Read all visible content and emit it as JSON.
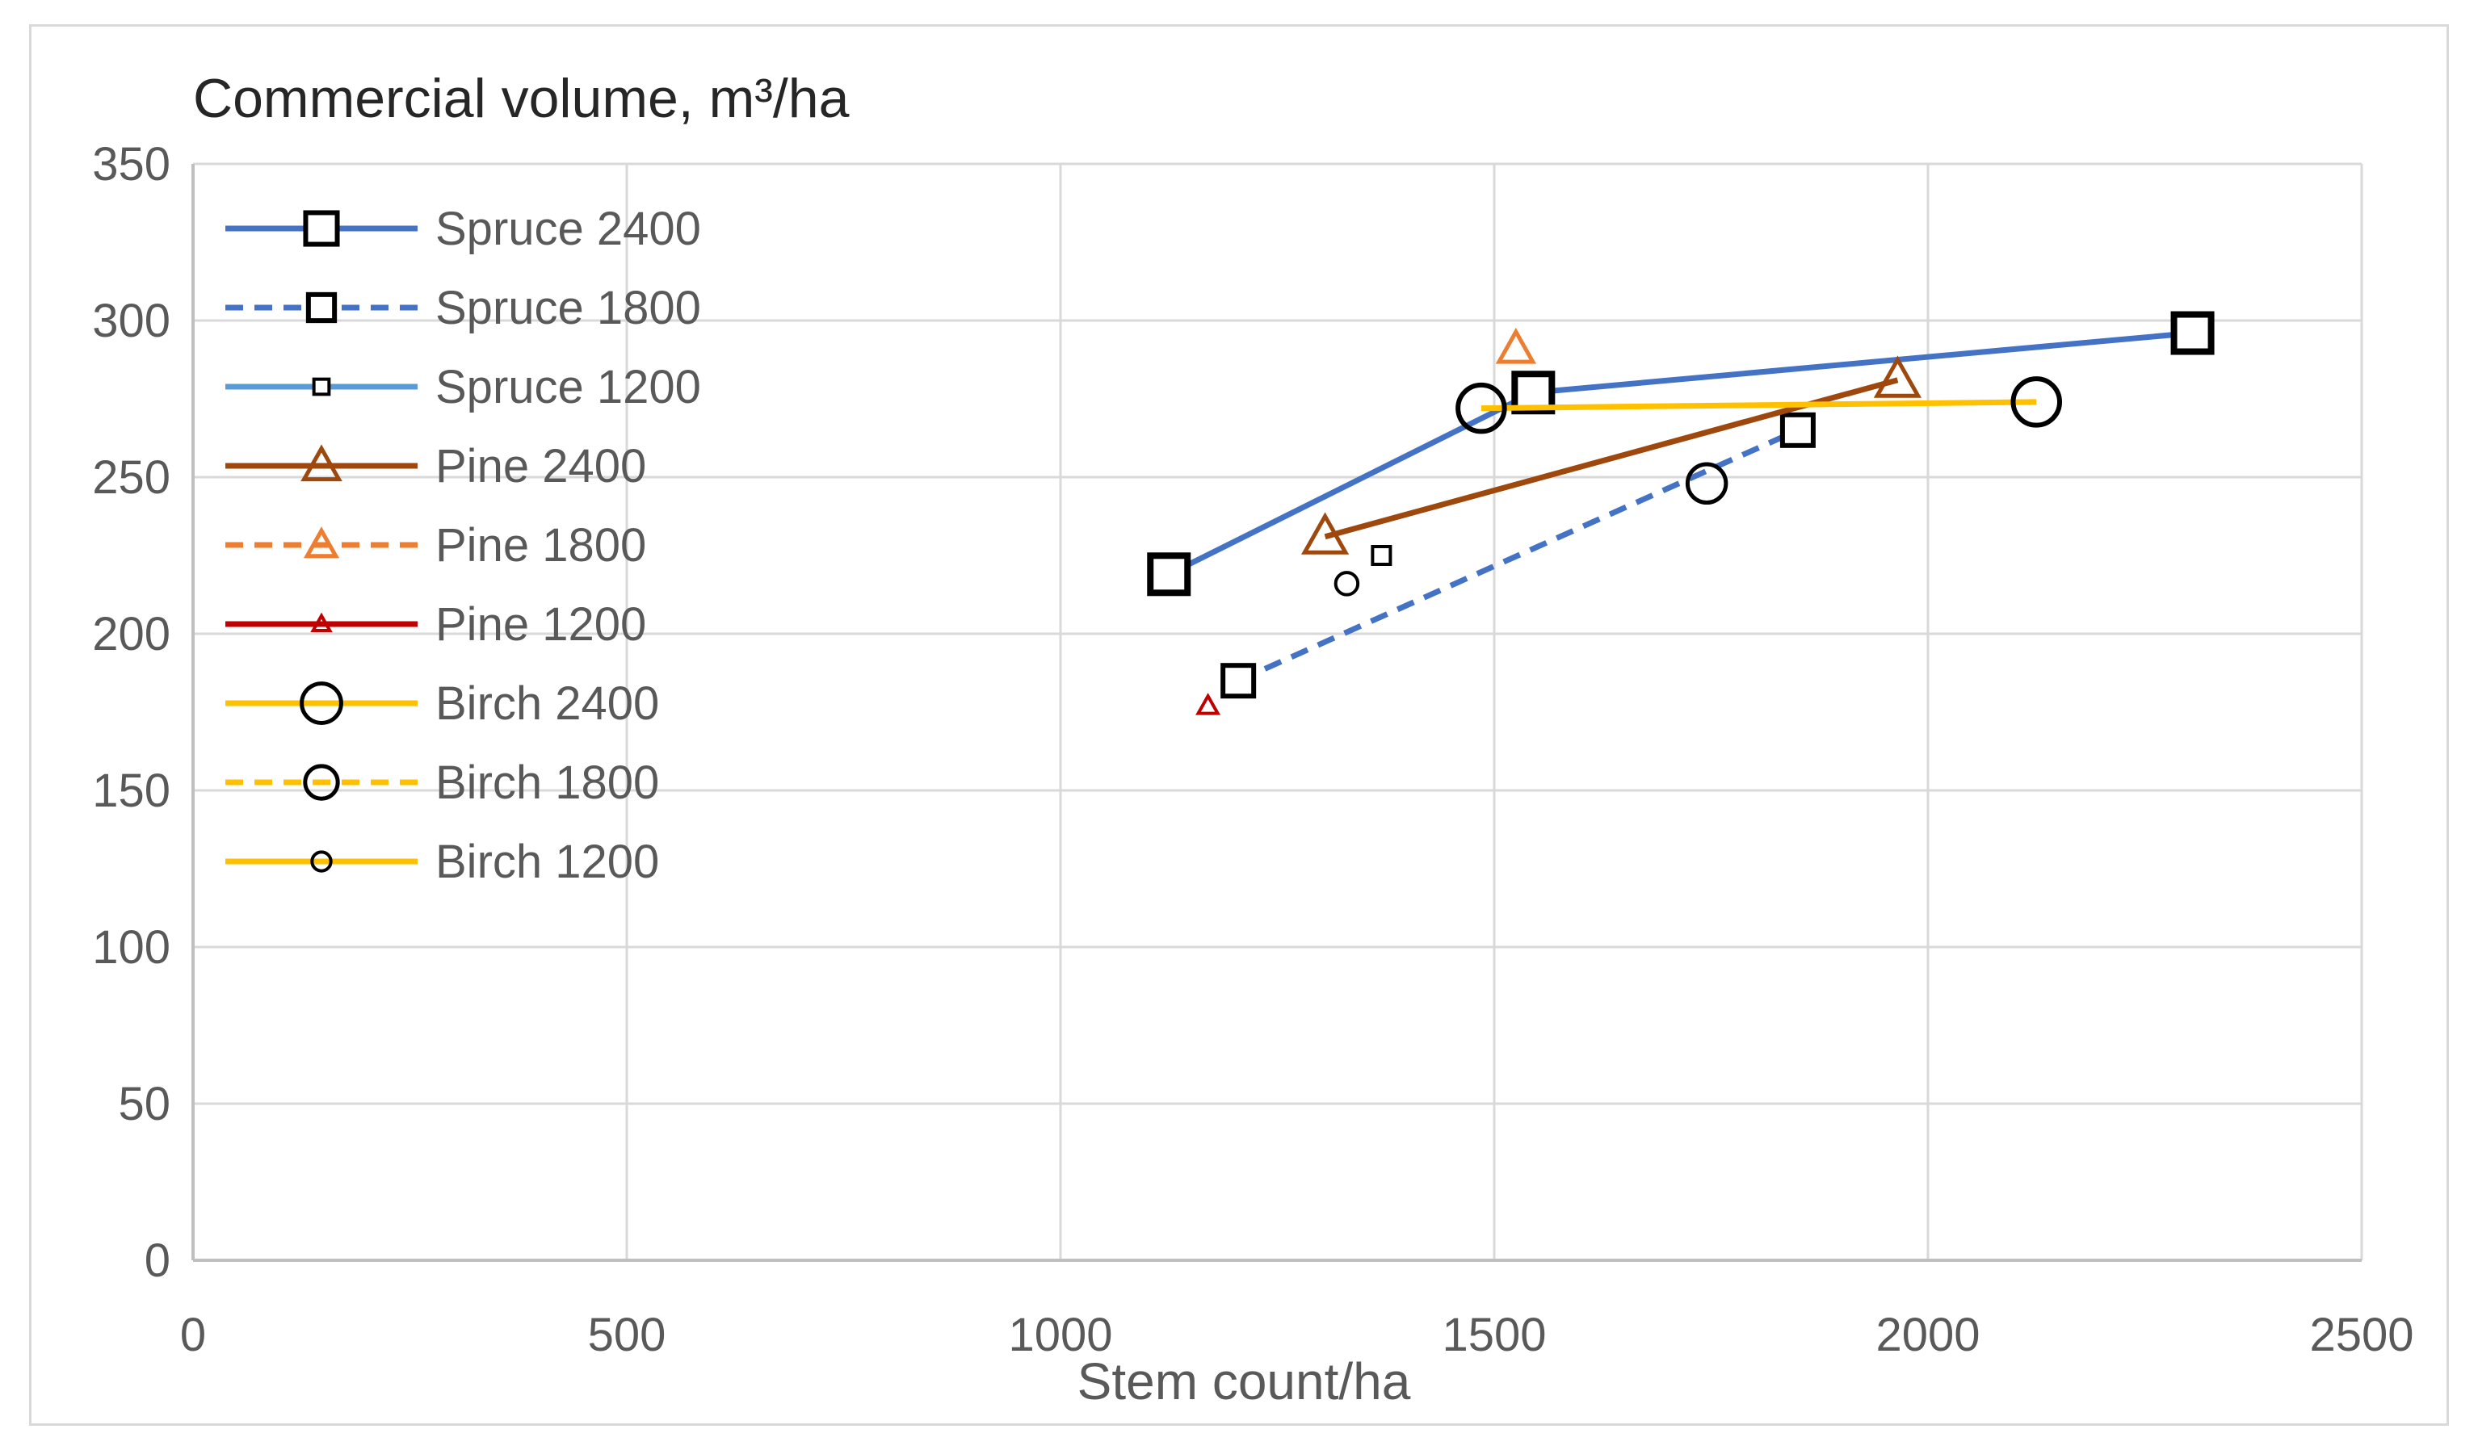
{
  "chart_data": {
    "type": "line",
    "title": "Commercial volume,  m³/ha",
    "xlabel": "Stem count/ha",
    "ylabel": "",
    "xlim": [
      0,
      2500
    ],
    "ylim": [
      0,
      350
    ],
    "xticks": [
      0,
      500,
      1000,
      1500,
      2000,
      2500
    ],
    "yticks": [
      0,
      50,
      100,
      150,
      200,
      250,
      300,
      350
    ],
    "grid": true,
    "legend": "top-left",
    "series": [
      {
        "name": "Spruce 2400",
        "color": "#4472c4",
        "dash": "solid",
        "marker": "square",
        "marker_size": "large",
        "points": [
          [
            1125,
            219
          ],
          [
            1545,
            277
          ],
          [
            2305,
            296
          ]
        ]
      },
      {
        "name": "Spruce 1800",
        "color": "#4472c4",
        "dash": "dashed",
        "marker": "square",
        "marker_size": "medium",
        "points": [
          [
            1205,
            185
          ],
          [
            1850,
            265
          ]
        ]
      },
      {
        "name": "Spruce 1200",
        "color": "#5b9bd5",
        "dash": "solid",
        "marker": "square",
        "marker_size": "small",
        "points": [
          [
            1370,
            225
          ]
        ]
      },
      {
        "name": "Pine 2400",
        "color": "#9e480e",
        "dash": "solid",
        "marker": "triangle",
        "marker_size": "large",
        "points": [
          [
            1305,
            231
          ],
          [
            1965,
            281
          ]
        ]
      },
      {
        "name": "Pine 1800",
        "color": "#ed7d31",
        "dash": "dashed",
        "marker": "triangle",
        "marker_size": "medium",
        "points": [
          [
            1525,
            291
          ]
        ]
      },
      {
        "name": "Pine 1200",
        "color": "#c00000",
        "dash": "solid",
        "marker": "triangle",
        "marker_size": "small",
        "points": [
          [
            1170,
            177
          ]
        ]
      },
      {
        "name": "Birch 2400",
        "color": "#ffc000",
        "dash": "solid",
        "marker": "circle",
        "marker_size": "large",
        "points": [
          [
            1485,
            272
          ],
          [
            2125,
            274
          ]
        ]
      },
      {
        "name": "Birch 1800",
        "color": "#ffc000",
        "dash": "dashed",
        "marker": "circle",
        "marker_size": "medium",
        "points": [
          [
            1745,
            248
          ]
        ]
      },
      {
        "name": "Birch 1200",
        "color": "#ffc000",
        "dash": "solid",
        "marker": "circle",
        "marker_size": "small",
        "points": [
          [
            1330,
            216
          ]
        ]
      }
    ]
  }
}
